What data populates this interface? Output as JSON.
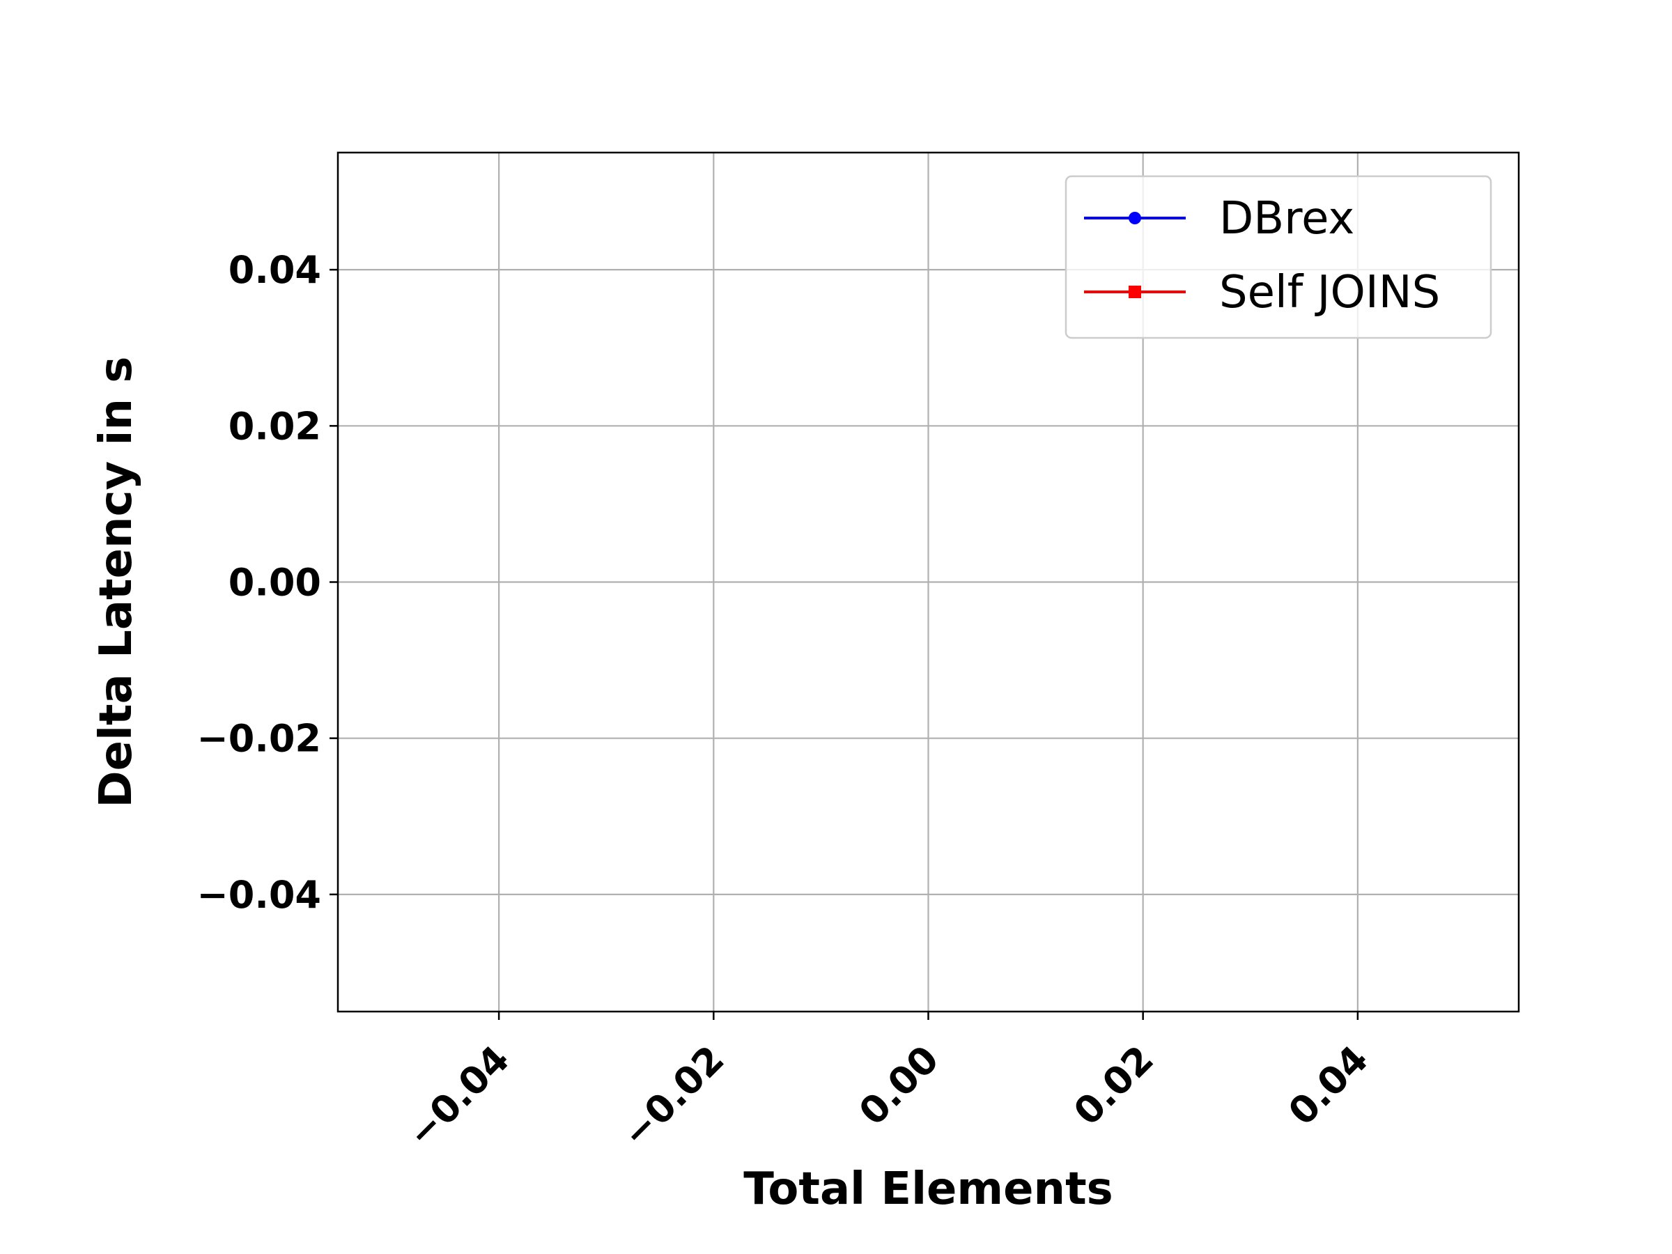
{
  "chart_data": {
    "type": "line",
    "xlabel": "Total Elements",
    "ylabel": "Delta Latency in s",
    "xlim": [
      -0.055,
      0.055
    ],
    "ylim": [
      -0.055,
      0.055
    ],
    "x_ticks": [
      -0.04,
      -0.02,
      0.0,
      0.02,
      0.04
    ],
    "x_tick_labels": [
      "−0.04",
      "−0.02",
      "0.00",
      "0.02",
      "0.04"
    ],
    "y_ticks": [
      -0.04,
      -0.02,
      0.0,
      0.02,
      0.04
    ],
    "y_tick_labels": [
      "−0.04",
      "−0.02",
      "0.00",
      "0.02",
      "0.04"
    ],
    "x_tick_rotation_deg": 45,
    "grid": true,
    "legend_position": "top-right",
    "series": [
      {
        "name": "DBrex",
        "color": "#0000ff",
        "marker": "circle",
        "x": [],
        "y": []
      },
      {
        "name": "Self JOINS",
        "color": "#ff0000",
        "marker": "square",
        "x": [],
        "y": []
      }
    ]
  }
}
